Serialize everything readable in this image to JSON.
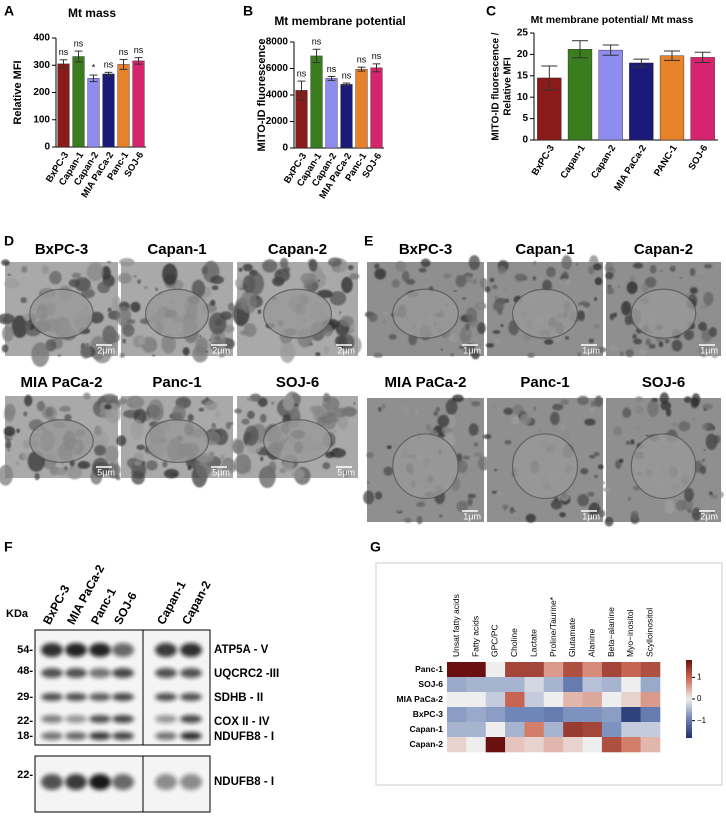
{
  "chart_data": [
    {
      "type": "bar",
      "title": "Mt mass",
      "ylabel": "Relative MFI",
      "categories": [
        "BxPC-3",
        "Capan-1",
        "Capan-2",
        "MIA PaCa-2",
        "Panc-1",
        "SOJ-6"
      ],
      "values": [
        305,
        332,
        252,
        268,
        303,
        316
      ],
      "errors": [
        15,
        20,
        12,
        6,
        18,
        12
      ],
      "significance": [
        "ns",
        "ns",
        "*",
        "ns",
        "ns",
        "ns"
      ],
      "colors": [
        "#8b1a1a",
        "#3a7d1e",
        "#8f8cf0",
        "#1c1a78",
        "#e8822a",
        "#d6246e"
      ],
      "ylim": [
        0,
        400
      ],
      "yticks": [
        0,
        100,
        200,
        300,
        400
      ]
    },
    {
      "type": "bar",
      "title": "Mt membrane potential",
      "ylabel": "MITO-ID fluorescence",
      "categories": [
        "BxPC-3",
        "Capan-1",
        "Capan-2",
        "MIA PaCa-2",
        "Panc-1",
        "SOJ-6"
      ],
      "values": [
        4350,
        6950,
        5250,
        4800,
        5950,
        6050
      ],
      "errors": [
        700,
        500,
        150,
        100,
        150,
        300
      ],
      "significance": [
        "ns",
        "ns",
        "ns",
        "ns",
        "ns",
        "ns"
      ],
      "colors": [
        "#8b1a1a",
        "#3a7d1e",
        "#8f8cf0",
        "#1c1a78",
        "#e8822a",
        "#d6246e"
      ],
      "ylim": [
        0,
        8000
      ],
      "yticks": [
        0,
        2000,
        4000,
        6000,
        8000
      ]
    },
    {
      "type": "bar",
      "title": "Mt membrane potential/ Mt mass",
      "ylabel": [
        "MITO-ID fluorescence /",
        "Relative MFI"
      ],
      "categories": [
        "BxPC-3",
        "Capan-1",
        "Capan-2",
        "MIA PaCa-2",
        "PANC-1",
        "SOJ-6"
      ],
      "values": [
        14.5,
        21.2,
        21.0,
        18.0,
        19.7,
        19.3
      ],
      "errors": [
        2.8,
        2.0,
        1.2,
        0.9,
        1.1,
        1.2
      ],
      "colors": [
        "#8b1a1a",
        "#3a7d1e",
        "#8f8cf0",
        "#1c1a78",
        "#e8822a",
        "#d6246e"
      ],
      "ylim": [
        0,
        25
      ],
      "yticks": [
        0,
        5,
        10,
        15,
        20,
        25
      ]
    },
    {
      "type": "heatmap",
      "columns": [
        "Unsat fatty acids",
        "Fatty acids",
        "GPC/PC",
        "Choline",
        "Lactate",
        "Proline/Taurine*",
        "Glutamate",
        "Alanine",
        "Beta−alanine",
        "Myo−inositol",
        "Scylloinositol"
      ],
      "rows": [
        "Panc-1",
        "SOJ-6",
        "MIA PaCa-2",
        "BxPC-3",
        "Capan-1",
        "Capan-2"
      ],
      "z": [
        [
          1.8,
          1.8,
          0,
          1.3,
          1.3,
          0.6,
          1.2,
          0.7,
          1.3,
          1.0,
          1.2
        ],
        [
          -0.6,
          -0.5,
          -0.5,
          -0.5,
          -0.2,
          -0.5,
          -1.0,
          -0.4,
          -0.5,
          0,
          -0.6
        ],
        [
          0,
          0,
          -0.3,
          1.0,
          -0.3,
          0,
          0.4,
          0.5,
          0,
          0.2,
          0.6
        ],
        [
          -0.7,
          -0.6,
          -0.7,
          -0.9,
          -0.9,
          -1.0,
          -0.8,
          -0.8,
          -0.7,
          -1.6,
          -1.0
        ],
        [
          -0.5,
          -0.5,
          0,
          -0.5,
          0.8,
          -0.5,
          1.4,
          1.3,
          -0.8,
          -0.3,
          -0.3
        ],
        [
          0.2,
          0,
          1.9,
          0.3,
          0.2,
          0.4,
          0.2,
          0,
          1.2,
          0.8,
          0.4
        ]
      ],
      "zlim": [
        -1.8,
        1.8
      ],
      "colorbar_ticks": [
        1,
        0,
        {
          "value": -1,
          "label": "−1"
        }
      ],
      "colorscale": [
        "#1e2f6e",
        "#6f86b8",
        "#eeeeee",
        "#d0705a",
        "#6b1010"
      ]
    }
  ],
  "panel_labels": [
    "A",
    "B",
    "C",
    "D",
    "E",
    "F",
    "G"
  ],
  "micrographs_d": {
    "labels": [
      "BxPC-3",
      "Capan-1",
      "Capan-2",
      "MIA PaCa-2",
      "Panc-1",
      "SOJ-6"
    ],
    "scale_bars": [
      "2μm",
      "2μm",
      "2μm",
      "5μm",
      "5μm",
      "5μm"
    ]
  },
  "micrographs_e": {
    "labels": [
      "BxPC-3",
      "Capan-1",
      "Capan-2",
      "MIA PaCa-2",
      "Panc-1",
      "SOJ-6"
    ],
    "scale_bars": [
      "1μm",
      "1μm",
      "1μm",
      "1μm",
      "1μm",
      "2μm"
    ]
  },
  "western_blot": {
    "kda_label": "KDa",
    "lanes": [
      "BxPC-3",
      "MIA PaCa-2",
      "Panc-1",
      "SOJ-6",
      "Capan-1",
      "Capan-2"
    ],
    "markers": [
      "54-",
      "48-",
      "29-",
      "22-",
      "18-",
      "22-"
    ],
    "bands": [
      "ATP5A - V",
      "UQCRC2 -III",
      "SDHB - II",
      "COX II - IV",
      "NDUFB8 - I",
      "NDUFB8 - I"
    ]
  }
}
